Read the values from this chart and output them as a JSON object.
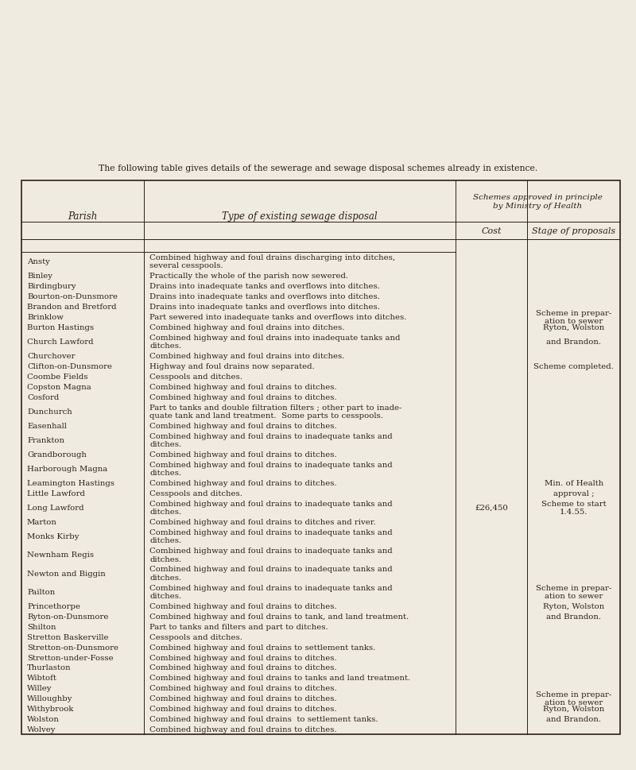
{
  "title": "The following table gives details of the sewerage and sewage disposal schemes already in existence.",
  "bg_color": "#f0ebe0",
  "text_color": "#2a2015",
  "col_header_1": "Parish",
  "col_header_2": "Type of existing sewage disposal",
  "col_header_3a": "Schemes approved in principle\nby Ministry of Health",
  "col_header_3b": "Cost",
  "col_header_3c": "Stage of proposals",
  "rows": [
    [
      "Ansty",
      "Combined highway and foul drains discharging into ditches,\nseveral cesspools.",
      "",
      ""
    ],
    [
      "Binley",
      "Practically the whole of the parish now sewered.",
      "",
      ""
    ],
    [
      "Birdingbury",
      "Drains into inadequate tanks and overflows into ditches.",
      "",
      ""
    ],
    [
      "Bourton-on-Dunsmore",
      "Drains into inadequate tanks and overflows into ditches.",
      "",
      ""
    ],
    [
      "Brandon and Bretford",
      "Drains into inadequate tanks and overflows into ditches.",
      "",
      ""
    ],
    [
      "Brinklow",
      "Part sewered into inadequate tanks and overflows into ditches.",
      "",
      "Scheme in prepar-\nation to sewer"
    ],
    [
      "Burton Hastings",
      "Combined highway and foul drains into ditches.",
      "",
      "Ryton, Wolston"
    ],
    [
      "Church Lawford",
      "Combined highway and foul drains into inadequate tanks and\nditches.",
      "",
      "and Brandon."
    ],
    [
      "Churchover",
      "Combined highway and foul drains into ditches.",
      "",
      ""
    ],
    [
      "Clifton-on-Dunsmore",
      "Highway and foul drains now separated.",
      "",
      "Scheme completed."
    ],
    [
      "Coombe Fields",
      "Cesspools and ditches.",
      "",
      ""
    ],
    [
      "Copston Magna",
      "Combined highway and foul drains to ditches.",
      "",
      ""
    ],
    [
      "Cosford",
      "Combined highway and foul drains to ditches.",
      "",
      ""
    ],
    [
      "Dunchurch",
      "Part to tanks and double filtration filters ; other part to inade-\nquate tank and land treatment.  Some parts to cesspools.",
      "",
      ""
    ],
    [
      "Easenhall",
      "Combined highway and foul drains to ditches.",
      "",
      ""
    ],
    [
      "Frankton",
      "Combined highway and foul drains to inadequate tanks and\nditches.",
      "",
      ""
    ],
    [
      "Grandborough",
      "Combined highway and foul drains to ditches.",
      "",
      ""
    ],
    [
      "Harborough Magna",
      "Combined highway and foul drains to inadequate tanks and\nditches.",
      "",
      ""
    ],
    [
      "Leamington Hastings",
      "Combined highway and foul drains to ditches.",
      "",
      "Min. of Health"
    ],
    [
      "Little Lawford",
      "Cesspools and ditches.",
      "",
      "approval ;"
    ],
    [
      "Long Lawford",
      "Combined highway and foul drains to inadequate tanks and\nditches.",
      "£26,450",
      "Scheme to start\n1.4.55."
    ],
    [
      "Marton",
      "Combined highway and foul drains to ditches and river.",
      "",
      ""
    ],
    [
      "Monks Kirby",
      "Combined highway and foul drains to inadequate tanks and\nditches.",
      "",
      ""
    ],
    [
      "Newnham Regis",
      "Combined highway and foul drains to inadequate tanks and\nditches.",
      "",
      ""
    ],
    [
      "Newton and Biggin",
      "Combined highway and foul drains to inadequate tanks and\nditches.",
      "",
      ""
    ],
    [
      "Pailton",
      "Combined highway and foul drains to inadequate tanks and\nditches.",
      "",
      "Scheme in prepar-\nation to sewer"
    ],
    [
      "Princethorpe",
      "Combined highway and foul drains to ditches.",
      "",
      "Ryton, Wolston"
    ],
    [
      "Ryton-on-Dunsmore",
      "Combined highway and foul drains to tank, and land treatment.",
      "",
      "and Brandon."
    ],
    [
      "Shilton",
      "Part to tanks and filters and part to ditches.",
      "",
      ""
    ],
    [
      "Stretton Baskerville",
      "Cesspools and ditches.",
      "",
      ""
    ],
    [
      "Stretton-on-Dunsmore",
      "Combined highway and foul drains to settlement tanks.",
      "",
      ""
    ],
    [
      "Stretton-under-Fosse",
      "Combined highway and foul drains to ditches.",
      "",
      ""
    ],
    [
      "Thurlaston",
      "Combined highway and foul drains to ditches.",
      "",
      ""
    ],
    [
      "Wibtoft",
      "Combined highway and foul drains to tanks and land treatment.",
      "",
      ""
    ],
    [
      "Willey",
      "Combined highway and foul drains to ditches.",
      "",
      ""
    ],
    [
      "Willoughby",
      "Combined highway and foul drains to ditches.",
      "",
      "Scheme in prepar-\nation to sewer"
    ],
    [
      "Withybrook",
      "Combined highway and foul drains to ditches.",
      "",
      "Ryton, Wolston"
    ],
    [
      "Wolston",
      "Combined highway and foul drains  to settlement tanks.",
      "",
      "and Brandon."
    ],
    [
      "Wolvey",
      "Combined highway and foul drains to ditches.",
      "",
      ""
    ]
  ]
}
